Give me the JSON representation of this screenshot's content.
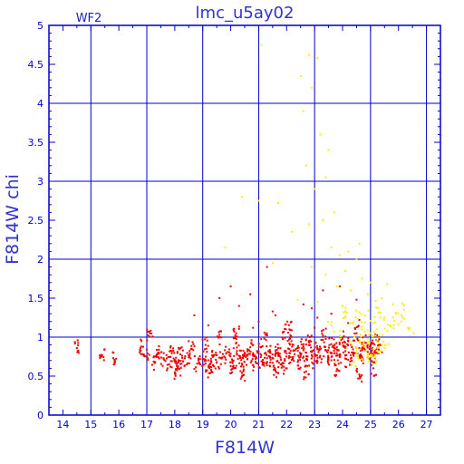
{
  "chart_data": {
    "type": "scatter",
    "title": "lmc_u5ay02",
    "panel_label": "WF2",
    "xlabel": "F814W",
    "ylabel": "F814W  chi",
    "xlim": [
      13.5,
      27.5
    ],
    "ylim": [
      0,
      5
    ],
    "x_ticks": [
      14,
      15,
      16,
      17,
      18,
      19,
      20,
      21,
      22,
      23,
      24,
      25,
      26,
      27
    ],
    "y_ticks": [
      0,
      0.5,
      1,
      1.5,
      2,
      2.5,
      3,
      3.5,
      4,
      4.5,
      5
    ],
    "grid": true,
    "legend": "none",
    "colors": {
      "frame": "#0000cc",
      "grid": "#0000cc",
      "series_red": "#ee0000",
      "series_yellow": "#ffee00"
    },
    "series": [
      {
        "color": "#ee0000",
        "points": [
          [
            14.5,
            0.86
          ],
          [
            15.4,
            0.77
          ],
          [
            15.8,
            0.73
          ],
          [
            16.8,
            0.88
          ],
          [
            17.0,
            0.75
          ],
          [
            17.1,
            1.01
          ],
          [
            17.3,
            0.68
          ],
          [
            17.4,
            0.8
          ],
          [
            17.6,
            0.73
          ],
          [
            17.8,
            0.65
          ],
          [
            17.9,
            0.82
          ],
          [
            18.0,
            0.71
          ],
          [
            18.1,
            0.6
          ],
          [
            18.2,
            0.78
          ],
          [
            18.3,
            0.69
          ],
          [
            18.5,
            0.74
          ],
          [
            18.6,
            0.85
          ],
          [
            18.8,
            0.66
          ],
          [
            19.0,
            0.72
          ],
          [
            19.1,
            0.9
          ],
          [
            19.2,
            0.62
          ],
          [
            19.4,
            0.77
          ],
          [
            19.5,
            0.68
          ],
          [
            19.6,
            1.0
          ],
          [
            19.7,
            0.74
          ],
          [
            19.9,
            0.81
          ],
          [
            20.0,
            0.63
          ],
          [
            20.1,
            0.7
          ],
          [
            20.2,
            0.93
          ],
          [
            20.3,
            0.76
          ],
          [
            20.4,
            0.66
          ],
          [
            20.5,
            0.8
          ],
          [
            20.6,
            0.72
          ],
          [
            20.7,
            0.87
          ],
          [
            20.8,
            0.64
          ],
          [
            20.9,
            0.75
          ],
          [
            21.0,
            0.82
          ],
          [
            21.1,
            0.69
          ],
          [
            21.2,
            0.98
          ],
          [
            21.3,
            0.73
          ],
          [
            21.4,
            0.8
          ],
          [
            21.5,
            0.67
          ],
          [
            21.6,
            0.76
          ],
          [
            21.7,
            0.86
          ],
          [
            21.8,
            0.71
          ],
          [
            21.9,
            0.62
          ],
          [
            22.0,
            0.79
          ],
          [
            22.1,
            0.92
          ],
          [
            22.2,
            0.74
          ],
          [
            22.3,
            0.83
          ],
          [
            22.4,
            0.68
          ],
          [
            22.5,
            0.77
          ],
          [
            22.6,
            0.88
          ],
          [
            22.7,
            0.72
          ],
          [
            22.8,
            0.95
          ],
          [
            22.9,
            0.81
          ],
          [
            23.0,
            0.7
          ],
          [
            23.1,
            0.86
          ],
          [
            23.2,
            0.76
          ],
          [
            23.3,
            1.02
          ],
          [
            23.4,
            0.83
          ],
          [
            23.5,
            0.73
          ],
          [
            23.6,
            0.91
          ],
          [
            23.7,
            0.79
          ],
          [
            23.8,
            0.87
          ],
          [
            23.9,
            0.75
          ],
          [
            24.0,
            0.98
          ],
          [
            24.1,
            0.82
          ],
          [
            24.2,
            0.71
          ],
          [
            24.3,
            0.9
          ],
          [
            24.4,
            0.79
          ],
          [
            24.5,
            1.05
          ],
          [
            24.6,
            0.86
          ],
          [
            24.7,
            0.74
          ],
          [
            24.8,
            0.93
          ],
          [
            24.9,
            0.81
          ],
          [
            25.0,
            0.88
          ],
          [
            25.1,
            0.77
          ],
          [
            25.2,
            0.96
          ],
          [
            25.3,
            0.84
          ],
          [
            18.0,
            0.55
          ],
          [
            19.3,
            0.58
          ],
          [
            20.4,
            0.54
          ],
          [
            21.6,
            0.57
          ],
          [
            22.7,
            0.56
          ],
          [
            23.8,
            0.59
          ],
          [
            24.6,
            0.52
          ],
          [
            25.1,
            0.6
          ],
          [
            19.6,
            1.5
          ],
          [
            18.7,
            1.28
          ],
          [
            20.3,
            1.4
          ],
          [
            21.0,
            1.2
          ],
          [
            21.5,
            1.33
          ],
          [
            22.1,
            1.1
          ],
          [
            22.6,
            1.42
          ],
          [
            23.1,
            1.25
          ],
          [
            23.6,
            1.3
          ],
          [
            24.2,
            1.18
          ],
          [
            24.5,
            1.48
          ],
          [
            23.0,
            1.12
          ],
          [
            22.9,
            1.37
          ],
          [
            21.9,
            1.07
          ],
          [
            20.8,
            1.12
          ],
          [
            19.2,
            1.15
          ],
          [
            20.0,
            1.65
          ],
          [
            20.7,
            1.55
          ],
          [
            21.3,
            1.9
          ],
          [
            23.3,
            1.6
          ],
          [
            23.9,
            1.65
          ],
          [
            24.6,
            1.22
          ],
          [
            21.6,
            1.28
          ],
          [
            20.2,
            1.05
          ]
        ]
      },
      {
        "color": "#ffee00",
        "points": [
          [
            21.1,
            4.75
          ],
          [
            22.8,
            4.62
          ],
          [
            23.1,
            4.58
          ],
          [
            22.5,
            4.35
          ],
          [
            22.9,
            4.2
          ],
          [
            22.6,
            3.9
          ],
          [
            23.2,
            3.6
          ],
          [
            23.5,
            3.4
          ],
          [
            22.7,
            3.2
          ],
          [
            23.4,
            3.05
          ],
          [
            23.0,
            2.9
          ],
          [
            20.4,
            2.8
          ],
          [
            21.0,
            2.75
          ],
          [
            21.7,
            2.72
          ],
          [
            23.7,
            2.6
          ],
          [
            23.3,
            2.5
          ],
          [
            22.8,
            2.45
          ],
          [
            22.2,
            2.35
          ],
          [
            24.6,
            2.2
          ],
          [
            23.6,
            2.15
          ],
          [
            24.2,
            2.1
          ],
          [
            19.8,
            2.15
          ],
          [
            23.9,
            2.05
          ],
          [
            24.5,
            2.0
          ],
          [
            21.5,
            1.95
          ],
          [
            22.9,
            1.9
          ],
          [
            24.1,
            1.85
          ],
          [
            23.4,
            1.8
          ],
          [
            24.7,
            1.75
          ],
          [
            25.0,
            1.7
          ],
          [
            25.6,
            1.68
          ],
          [
            23.8,
            1.65
          ],
          [
            24.3,
            1.6
          ],
          [
            24.9,
            1.55
          ],
          [
            25.4,
            1.5
          ],
          [
            22.4,
            1.48
          ],
          [
            23.1,
            1.45
          ],
          [
            24.0,
            1.4
          ],
          [
            25.8,
            1.42
          ],
          [
            25.2,
            1.38
          ],
          [
            26.2,
            1.35
          ],
          [
            24.6,
            1.32
          ],
          [
            24.8,
            1.28
          ],
          [
            25.5,
            1.25
          ],
          [
            24.4,
            1.2
          ],
          [
            25.1,
            1.18
          ],
          [
            25.7,
            1.15
          ],
          [
            26.4,
            1.12
          ],
          [
            24.7,
            1.1
          ],
          [
            25.0,
            1.05
          ],
          [
            25.3,
            1.02
          ],
          [
            24.9,
            0.98
          ],
          [
            25.2,
            0.95
          ],
          [
            24.6,
            0.93
          ],
          [
            25.4,
            0.9
          ],
          [
            24.8,
            0.88
          ],
          [
            25.1,
            0.85
          ],
          [
            24.5,
            0.82
          ],
          [
            25.3,
            0.8
          ],
          [
            24.9,
            0.78
          ],
          [
            25.0,
            0.75
          ],
          [
            24.7,
            0.72
          ],
          [
            25.2,
            0.7
          ],
          [
            24.4,
            0.68
          ],
          [
            25.5,
            0.86
          ],
          [
            24.3,
            0.94
          ],
          [
            23.9,
            1.02
          ],
          [
            25.6,
            1.08
          ],
          [
            24.1,
            1.25
          ],
          [
            23.6,
            1.15
          ],
          [
            25.9,
            1.3
          ],
          [
            26.1,
            1.2
          ]
        ]
      }
    ]
  }
}
